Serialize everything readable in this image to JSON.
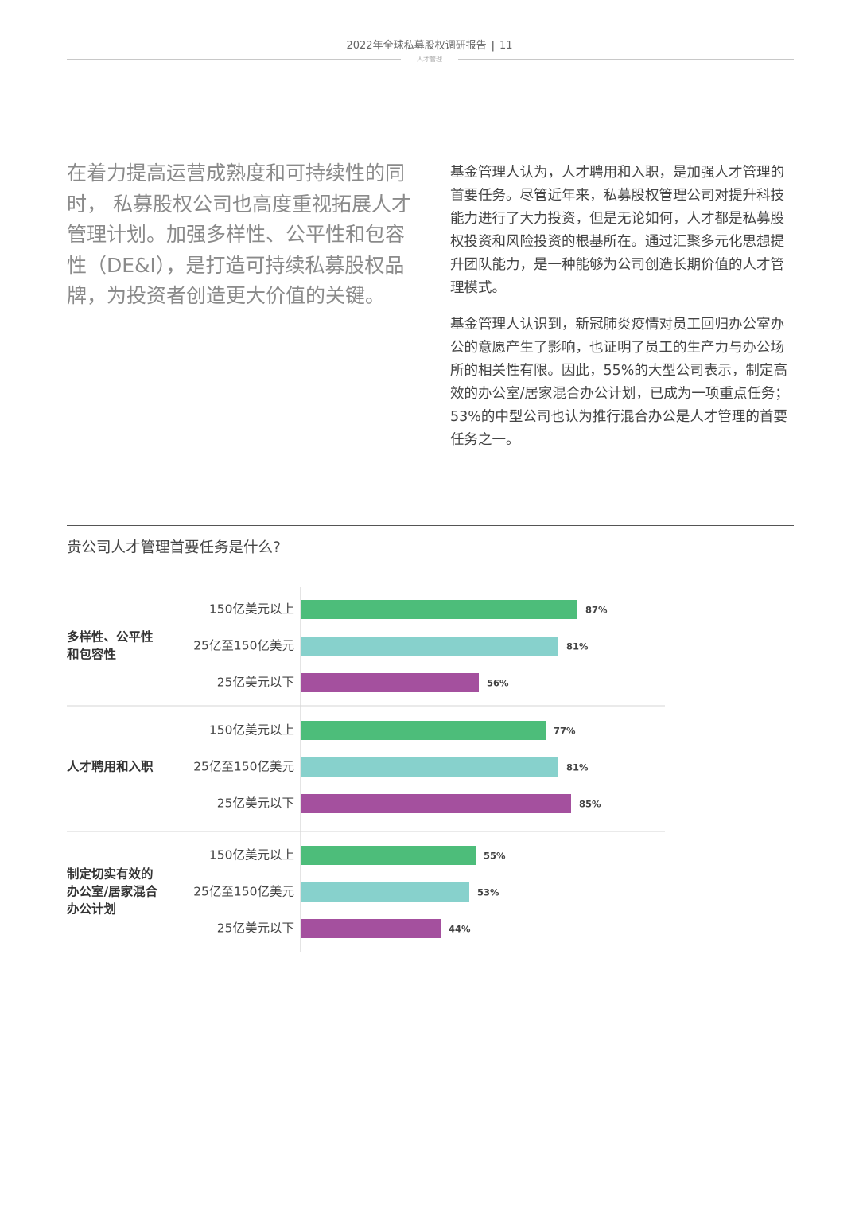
{
  "header": {
    "report_title": "2022年全球私募股权调研报告",
    "page_number": "11",
    "section_label": "人才管理"
  },
  "intro_text": "在着力提高运营成熟度和可持续性的同时， 私募股权公司也高度重视拓展人才管理计划。加强多样性、公平性和包容性（DE&I），是打造可持续私募股权品牌，为投资者创造更大价值的关键。",
  "body_paragraphs": [
    "基金管理人认为，人才聘用和入职，是加强人才管理的首要任务。尽管近年来，私募股权管理公司对提升科技能力进行了大力投资，但是无论如何，人才都是私募股权投资和风险投资的根基所在。通过汇聚多元化思想提升团队能力，是一种能够为公司创造长期价值的人才管理模式。",
    "基金管理人认识到，新冠肺炎疫情对员工回归办公室办公的意愿产生了影响，也证明了员工的生产力与办公场所的相关性有限。因此，55%的大型公司表示，制定高效的办公室/居家混合办公计划，已成为一项重点任务；53%的中型公司也认为推行混合办公是人才管理的首要任务之一。"
  ],
  "chart_data": {
    "type": "bar",
    "orientation": "horizontal",
    "title": "贵公司人才管理首要任务是什么?",
    "unit": "%",
    "xlim": [
      0,
      100
    ],
    "series_colors": [
      "#4dbd7a",
      "#87d1cc",
      "#a4509e"
    ],
    "groups": [
      {
        "label_lines": [
          "多样性、公平性",
          "和包容性"
        ],
        "bars": [
          {
            "category": "150亿美元以上",
            "value": 87,
            "label": "87%"
          },
          {
            "category": "25亿至150亿美元",
            "value": 81,
            "label": "81%"
          },
          {
            "category": "25亿美元以下",
            "value": 56,
            "label": "56%"
          }
        ]
      },
      {
        "label_lines": [
          "人才聘用和入职"
        ],
        "bars": [
          {
            "category": "150亿美元以上",
            "value": 77,
            "label": "77%"
          },
          {
            "category": "25亿至150亿美元",
            "value": 81,
            "label": "81%"
          },
          {
            "category": "25亿美元以下",
            "value": 85,
            "label": "85%"
          }
        ]
      },
      {
        "label_lines": [
          "制定切实有效的",
          "办公室/居家混合",
          "办公计划"
        ],
        "bars": [
          {
            "category": "150亿美元以上",
            "value": 55,
            "label": "55%"
          },
          {
            "category": "25亿至150亿美元",
            "value": 53,
            "label": "53%"
          },
          {
            "category": "25亿美元以下",
            "value": 44,
            "label": "44%"
          }
        ]
      }
    ]
  }
}
